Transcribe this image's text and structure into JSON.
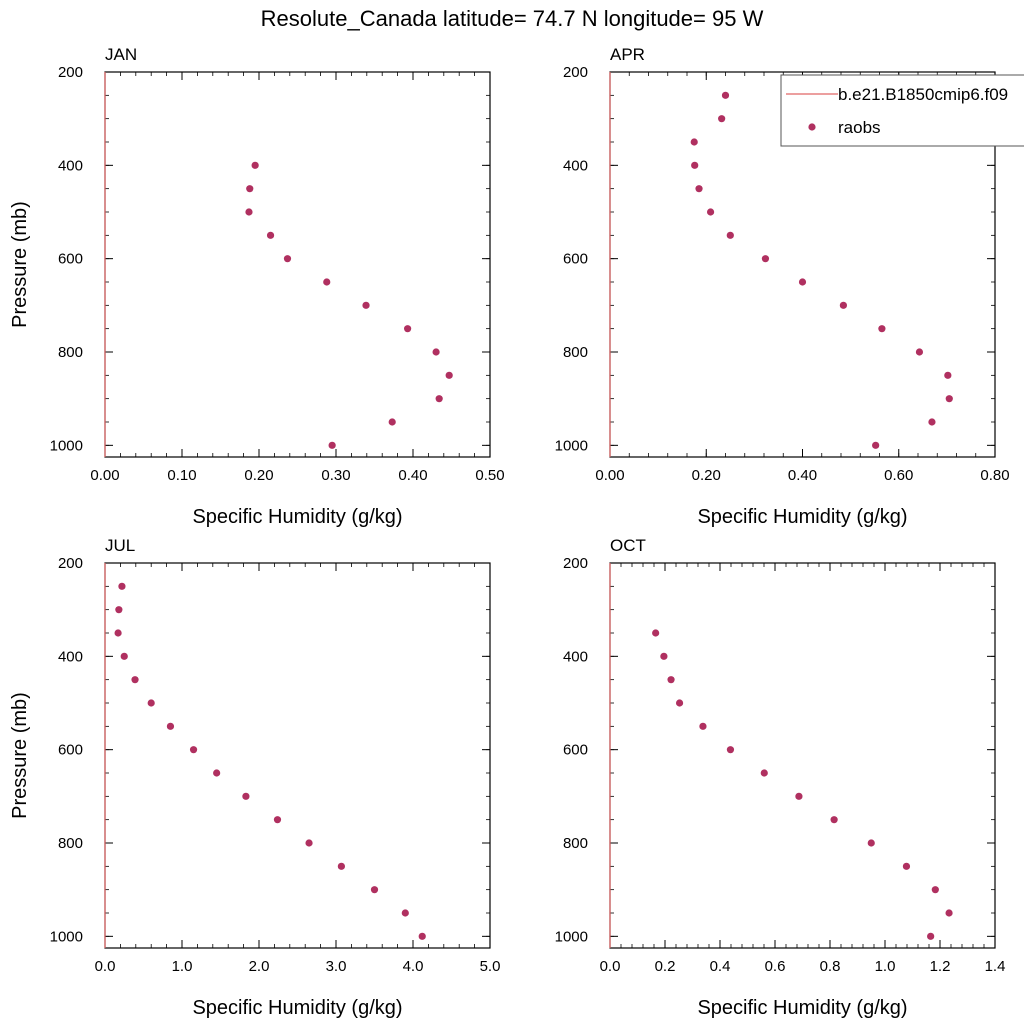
{
  "title": "Resolute_Canada  latitude= 74.7 N longitude= 95 W",
  "colors": {
    "raobs": "#b03060",
    "model": "#e06666"
  },
  "legend": {
    "model_label": "b.e21.B1850cmip6.f09",
    "obs_label": "raobs"
  },
  "chart_data": [
    {
      "type": "scatter",
      "panel": "JAN",
      "xlabel": "Specific Humidity (g/kg)",
      "ylabel": "Pressure (mb)",
      "xlim": [
        0,
        0.5
      ],
      "ylim": [
        200,
        1025
      ],
      "y_inverted": true,
      "xticks": [
        0,
        0.1,
        0.2,
        0.3,
        0.4,
        0.5
      ],
      "xtick_labels": [
        "0.00",
        "0.10",
        "0.20",
        "0.30",
        "0.40",
        "0.50"
      ],
      "yticks": [
        200,
        400,
        600,
        800,
        1000
      ],
      "ytick_labels": [
        "200",
        "400",
        "600",
        "800",
        "1000"
      ],
      "series": [
        {
          "name": "raobs",
          "x": [
            0.195,
            0.188,
            0.187,
            0.215,
            0.237,
            0.288,
            0.339,
            0.393,
            0.43,
            0.447,
            0.434,
            0.373,
            0.295
          ],
          "y": [
            400,
            450,
            500,
            550,
            600,
            650,
            700,
            750,
            800,
            850,
            900,
            950,
            1000
          ]
        },
        {
          "name": "b.e21.B1850cmip6.f09",
          "x": [
            0,
            0
          ],
          "y": [
            200,
            1025
          ]
        }
      ]
    },
    {
      "type": "scatter",
      "panel": "APR",
      "xlabel": "Specific Humidity (g/kg)",
      "ylabel": "",
      "xlim": [
        0,
        0.8
      ],
      "ylim": [
        200,
        1025
      ],
      "y_inverted": true,
      "xticks": [
        0,
        0.2,
        0.4,
        0.6,
        0.8
      ],
      "xtick_labels": [
        "0.00",
        "0.20",
        "0.40",
        "0.60",
        "0.80"
      ],
      "yticks": [
        200,
        400,
        600,
        800,
        1000
      ],
      "ytick_labels": [
        "200",
        "400",
        "600",
        "800",
        "1000"
      ],
      "series": [
        {
          "name": "raobs",
          "x": [
            0.24,
            0.232,
            0.175,
            0.176,
            0.185,
            0.209,
            0.25,
            0.323,
            0.4,
            0.485,
            0.565,
            0.643,
            0.702,
            0.705,
            0.669,
            0.552
          ],
          "y": [
            250,
            300,
            350,
            400,
            450,
            500,
            550,
            600,
            650,
            700,
            750,
            800,
            850,
            900,
            950,
            1000
          ]
        },
        {
          "name": "b.e21.B1850cmip6.f09",
          "x": [
            0,
            0
          ],
          "y": [
            200,
            1025
          ]
        }
      ]
    },
    {
      "type": "scatter",
      "panel": "JUL",
      "xlabel": "Specific Humidity (g/kg)",
      "ylabel": "Pressure (mb)",
      "xlim": [
        0,
        5
      ],
      "ylim": [
        200,
        1025
      ],
      "y_inverted": true,
      "xticks": [
        0,
        1,
        2,
        3,
        4,
        5
      ],
      "xtick_labels": [
        "0.0",
        "1.0",
        "2.0",
        "3.0",
        "4.0",
        "5.0"
      ],
      "yticks": [
        200,
        400,
        600,
        800,
        1000
      ],
      "ytick_labels": [
        "200",
        "400",
        "600",
        "800",
        "1000"
      ],
      "series": [
        {
          "name": "raobs",
          "x": [
            0.22,
            0.18,
            0.17,
            0.25,
            0.39,
            0.6,
            0.85,
            1.15,
            1.45,
            1.83,
            2.24,
            2.65,
            3.07,
            3.5,
            3.9,
            4.12
          ],
          "y": [
            250,
            300,
            350,
            400,
            450,
            500,
            550,
            600,
            650,
            700,
            750,
            800,
            850,
            900,
            950,
            1000
          ]
        },
        {
          "name": "b.e21.B1850cmip6.f09",
          "x": [
            0,
            0
          ],
          "y": [
            200,
            1025
          ]
        }
      ]
    },
    {
      "type": "scatter",
      "panel": "OCT",
      "xlabel": "Specific Humidity (g/kg)",
      "ylabel": "",
      "xlim": [
        0,
        1.4
      ],
      "ylim": [
        200,
        1025
      ],
      "y_inverted": true,
      "xticks": [
        0,
        0.2,
        0.4,
        0.6,
        0.8,
        1.0,
        1.2,
        1.4
      ],
      "xtick_labels": [
        "0.0",
        "0.2",
        "0.4",
        "0.6",
        "0.8",
        "1.0",
        "1.2",
        "1.4"
      ],
      "yticks": [
        200,
        400,
        600,
        800,
        1000
      ],
      "ytick_labels": [
        "200",
        "400",
        "600",
        "800",
        "1000"
      ],
      "series": [
        {
          "name": "raobs",
          "x": [
            0.166,
            0.196,
            0.222,
            0.253,
            0.338,
            0.438,
            0.561,
            0.687,
            0.815,
            0.95,
            1.078,
            1.183,
            1.233,
            1.166
          ],
          "y": [
            350,
            400,
            450,
            500,
            550,
            600,
            650,
            700,
            750,
            800,
            850,
            900,
            950,
            1000
          ]
        },
        {
          "name": "b.e21.B1850cmip6.f09",
          "x": [
            0,
            0
          ],
          "y": [
            200,
            1025
          ]
        }
      ]
    }
  ]
}
